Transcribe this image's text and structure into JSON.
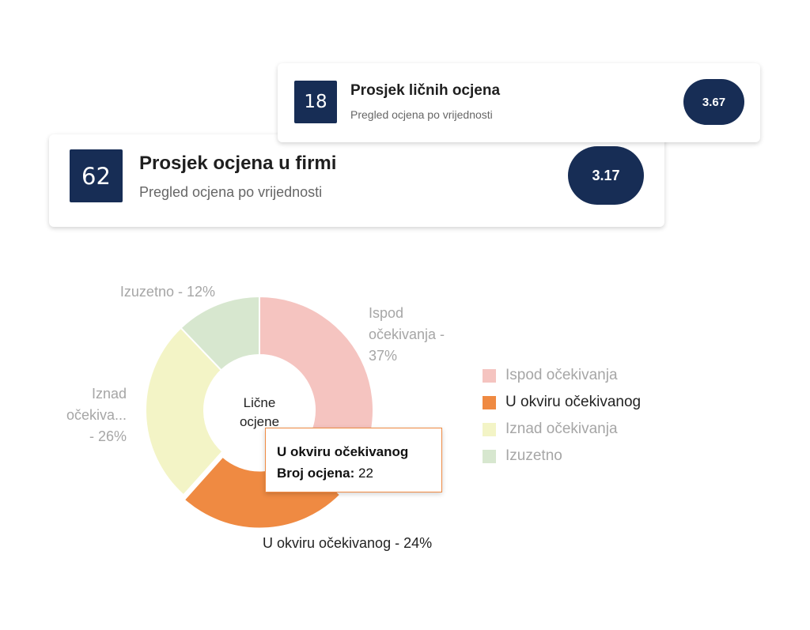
{
  "cards": {
    "personal": {
      "count": "18",
      "title": "Prosjek ličnih ocjena",
      "subtitle": "Pregled ocjena po vrijednosti",
      "average": "3.67"
    },
    "firm": {
      "count": "62",
      "title": "Prosjek ocjena u firmi",
      "subtitle": "Pregled ocjena po vrijednosti",
      "average": "3.17"
    }
  },
  "chart_data": {
    "type": "pie",
    "donut": true,
    "center_label": [
      "Lične",
      "ocjene"
    ],
    "categories": [
      "Ispod očekivanja",
      "U okviru očekivanog",
      "Iznad očekivanja",
      "Izuzetno"
    ],
    "percentages": [
      37,
      24,
      26,
      12
    ],
    "colors": [
      "#f5c4c0",
      "#ef8a42",
      "#f3f4c6",
      "#d7e7cf"
    ],
    "data_labels": [
      [
        "Ispod",
        "očekivanja -",
        "37%"
      ],
      [
        "U okviru očekivanog - 24%"
      ],
      [
        "Iznad",
        "očekiva...",
        "- 26%"
      ],
      [
        "Izuzetno - 12%"
      ]
    ],
    "highlighted_index": 1,
    "legend_position": "right"
  },
  "tooltip": {
    "title": "U okviru očekivanog",
    "key": "Broj ocjena:",
    "value": "22"
  }
}
